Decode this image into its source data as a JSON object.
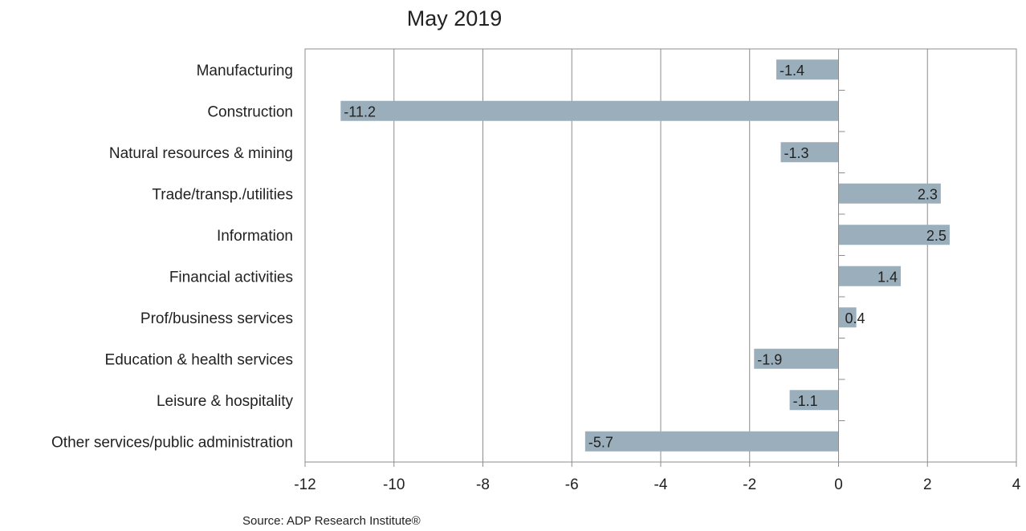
{
  "chart_data": {
    "type": "bar",
    "orientation": "horizontal",
    "title": "May 2019",
    "categories": [
      "Manufacturing",
      "Construction",
      "Natural resources & mining",
      "Trade/transp./utilities",
      "Information",
      "Financial activities",
      "Prof/business services",
      "Education & health services",
      "Leisure & hospitality",
      "Other services/public administration"
    ],
    "values": [
      -1.4,
      -11.2,
      -1.3,
      2.3,
      2.5,
      1.4,
      0.4,
      -1.9,
      -1.1,
      -5.7
    ],
    "value_labels": [
      "-1.4",
      "-11.2",
      "-1.3",
      "2.3",
      "2.5",
      "1.4",
      "0.4",
      "-1.9",
      "-1.1",
      "-5.7"
    ],
    "xlim": [
      -12,
      4
    ],
    "xticks": [
      -12,
      -10,
      -8,
      -6,
      -4,
      -2,
      0,
      2,
      4
    ],
    "xlabel": "",
    "ylabel": "",
    "grid": true,
    "legend": "none",
    "bar_color": "#9aafbb",
    "source": "Source: ADP Research Institute®"
  }
}
